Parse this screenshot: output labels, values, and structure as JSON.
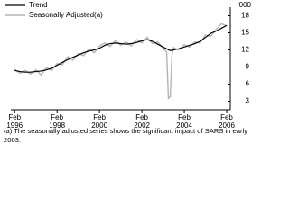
{
  "chart_data": {
    "type": "line",
    "y_label": "'000",
    "note": "(a) The seasonally adjusted series shows the significant impact of SARS in early 2003.",
    "x": [
      1996.08,
      1996.33,
      1996.58,
      1996.83,
      1997.08,
      1997.33,
      1997.58,
      1997.83,
      1998.08,
      1998.33,
      1998.58,
      1998.83,
      1999.08,
      1999.33,
      1999.58,
      1999.83,
      2000.08,
      2000.33,
      2000.58,
      2000.83,
      2001.08,
      2001.33,
      2001.58,
      2001.83,
      2002.08,
      2002.33,
      2002.58,
      2002.83,
      2003.08,
      2003.25,
      2003.33,
      2003.42,
      2003.5,
      2003.58,
      2003.83,
      2004.08,
      2004.33,
      2004.58,
      2004.83,
      2005.08,
      2005.33,
      2005.58,
      2005.83,
      2006.08
    ],
    "series": [
      {
        "name": "Trend",
        "color": "#000000",
        "values": [
          8.4,
          8.2,
          8.1,
          8.1,
          8.2,
          8.3,
          8.5,
          8.8,
          9.3,
          9.8,
          10.3,
          10.7,
          11.1,
          11.5,
          11.8,
          12.0,
          12.3,
          12.8,
          13.1,
          13.2,
          13.1,
          13.0,
          13.1,
          13.3,
          13.6,
          13.8,
          13.5,
          13.0,
          12.5,
          12.2,
          12.0,
          11.9,
          11.9,
          12.0,
          12.2,
          12.5,
          12.8,
          13.1,
          13.5,
          14.2,
          14.9,
          15.3,
          15.8,
          16.3
        ]
      },
      {
        "name": "Seasonally Adjusted(a)",
        "color": "#b4b4b4",
        "values": [
          8.6,
          7.9,
          8.4,
          7.8,
          8.5,
          7.6,
          8.9,
          8.4,
          9.6,
          9.4,
          10.8,
          10.2,
          11.4,
          11.0,
          12.2,
          11.5,
          12.7,
          13.2,
          12.6,
          13.6,
          12.8,
          13.4,
          12.7,
          13.8,
          13.2,
          14.2,
          13.1,
          13.4,
          12.3,
          11.6,
          3.5,
          3.8,
          11.2,
          12.4,
          12.0,
          12.9,
          12.5,
          13.4,
          13.2,
          14.6,
          14.4,
          15.6,
          16.6,
          16.2
        ]
      }
    ],
    "xlim": [
      1995.9,
      2006.25
    ],
    "xticks": [
      {
        "value": 1996.08,
        "label": "Feb 1996"
      },
      {
        "value": 1998.08,
        "label": "Feb 1998"
      },
      {
        "value": 2000.08,
        "label": "Feb 2000"
      },
      {
        "value": 2002.08,
        "label": "Feb 2002"
      },
      {
        "value": 2004.08,
        "label": "Feb 2004"
      },
      {
        "value": 2006.08,
        "label": "Feb 2006"
      }
    ],
    "ylim": [
      1.5,
      19.5
    ],
    "yticks": [
      3,
      6,
      9,
      12,
      15,
      18
    ],
    "legend": "top-left",
    "grid": false
  }
}
